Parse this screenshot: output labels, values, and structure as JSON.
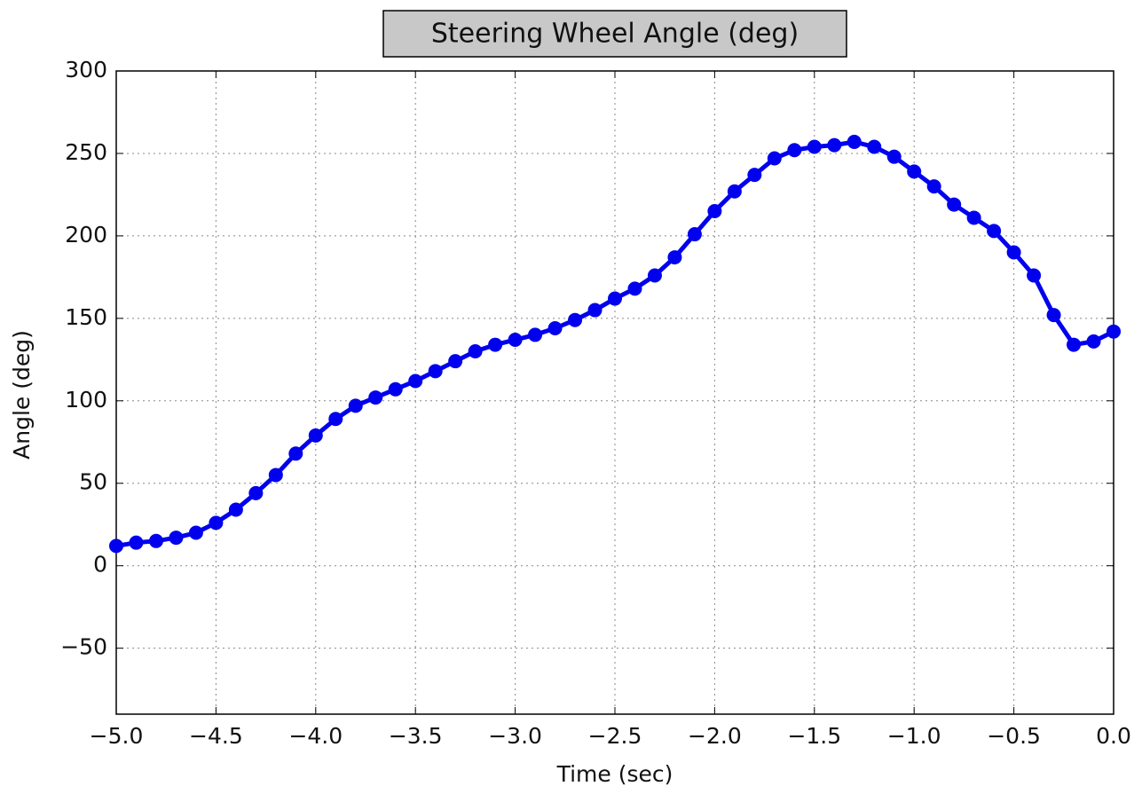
{
  "chart_data": {
    "type": "line",
    "title": "Steering Wheel Angle (deg)",
    "xlabel": "Time (sec)",
    "ylabel": "Angle (deg)",
    "x": [
      -5,
      -4.9,
      -4.8,
      -4.7,
      -4.6,
      -4.5,
      -4.4,
      -4.3,
      -4.2,
      -4.1,
      -4,
      -3.9,
      -3.8,
      -3.7,
      -3.6,
      -3.5,
      -3.4,
      -3.3,
      -3.2,
      -3.1,
      -3,
      -2.9,
      -2.8,
      -2.7,
      -2.6,
      -2.5,
      -2.4,
      -2.3,
      -2.2,
      -2.1,
      -2,
      -1.9,
      -1.8,
      -1.7,
      -1.6,
      -1.5,
      -1.4,
      -1.3,
      -1.2,
      -1.1,
      -1,
      -0.9,
      -0.8,
      -0.7,
      -0.6,
      -0.5,
      -0.4,
      -0.3,
      -0.2,
      -0.1,
      0
    ],
    "series": [
      {
        "name": "Steering Wheel Angle",
        "color": "#0000ee",
        "values": [
          12,
          14,
          15,
          17,
          20,
          26,
          34,
          44,
          55,
          68,
          79,
          89,
          97,
          102,
          107,
          112,
          118,
          124,
          130,
          134,
          137,
          140,
          144,
          149,
          155,
          162,
          168,
          176,
          187,
          201,
          215,
          227,
          237,
          247,
          252,
          254,
          255,
          257,
          254,
          248,
          239,
          230,
          219,
          211,
          203,
          190,
          176,
          152,
          134,
          136,
          142
        ]
      }
    ],
    "xlim": [
      -5,
      0
    ],
    "xticks": [
      {
        "value": -5,
        "label": "−5.0"
      },
      {
        "value": -4.5,
        "label": "−4.5"
      },
      {
        "value": -4,
        "label": "−4.0"
      },
      {
        "value": -3.5,
        "label": "−3.5"
      },
      {
        "value": -3,
        "label": "−3.0"
      },
      {
        "value": -2.5,
        "label": "−2.5"
      },
      {
        "value": -2,
        "label": "−2.0"
      },
      {
        "value": -1.5,
        "label": "−1.5"
      },
      {
        "value": -1,
        "label": "−1.0"
      },
      {
        "value": -0.5,
        "label": "−0.5"
      },
      {
        "value": 0,
        "label": "0.0"
      }
    ],
    "ylim": [
      -90,
      300
    ],
    "yticks": [
      {
        "value": -50,
        "label": "−50"
      },
      0,
      50,
      100,
      150,
      200,
      250,
      300
    ],
    "grid": true
  }
}
